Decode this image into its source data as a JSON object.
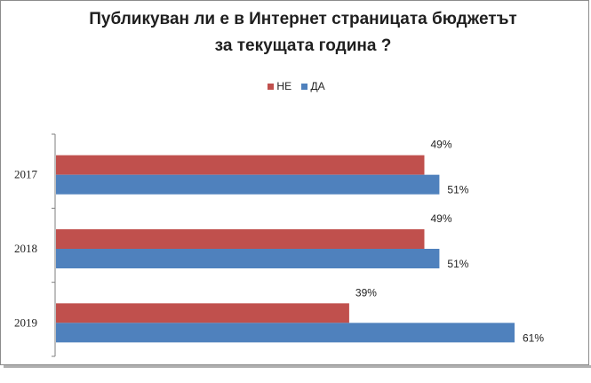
{
  "chart_data": {
    "type": "bar",
    "orientation": "horizontal",
    "title": [
      "Публикуван ли е в Интернет страницата бюджетът",
      "за текущата година ?"
    ],
    "categories": [
      "2017",
      "2018",
      "2019"
    ],
    "series": [
      {
        "name": "НЕ",
        "color": "#c0504d",
        "values": [
          49,
          49,
          39
        ],
        "labels": [
          "49%",
          "49%",
          "39%"
        ]
      },
      {
        "name": "ДА",
        "color": "#4f81bd",
        "values": [
          51,
          51,
          61
        ],
        "labels": [
          "51%",
          "51%",
          "61%"
        ]
      }
    ],
    "xlim": [
      0,
      70
    ],
    "legend_position": "top",
    "grid": false
  }
}
